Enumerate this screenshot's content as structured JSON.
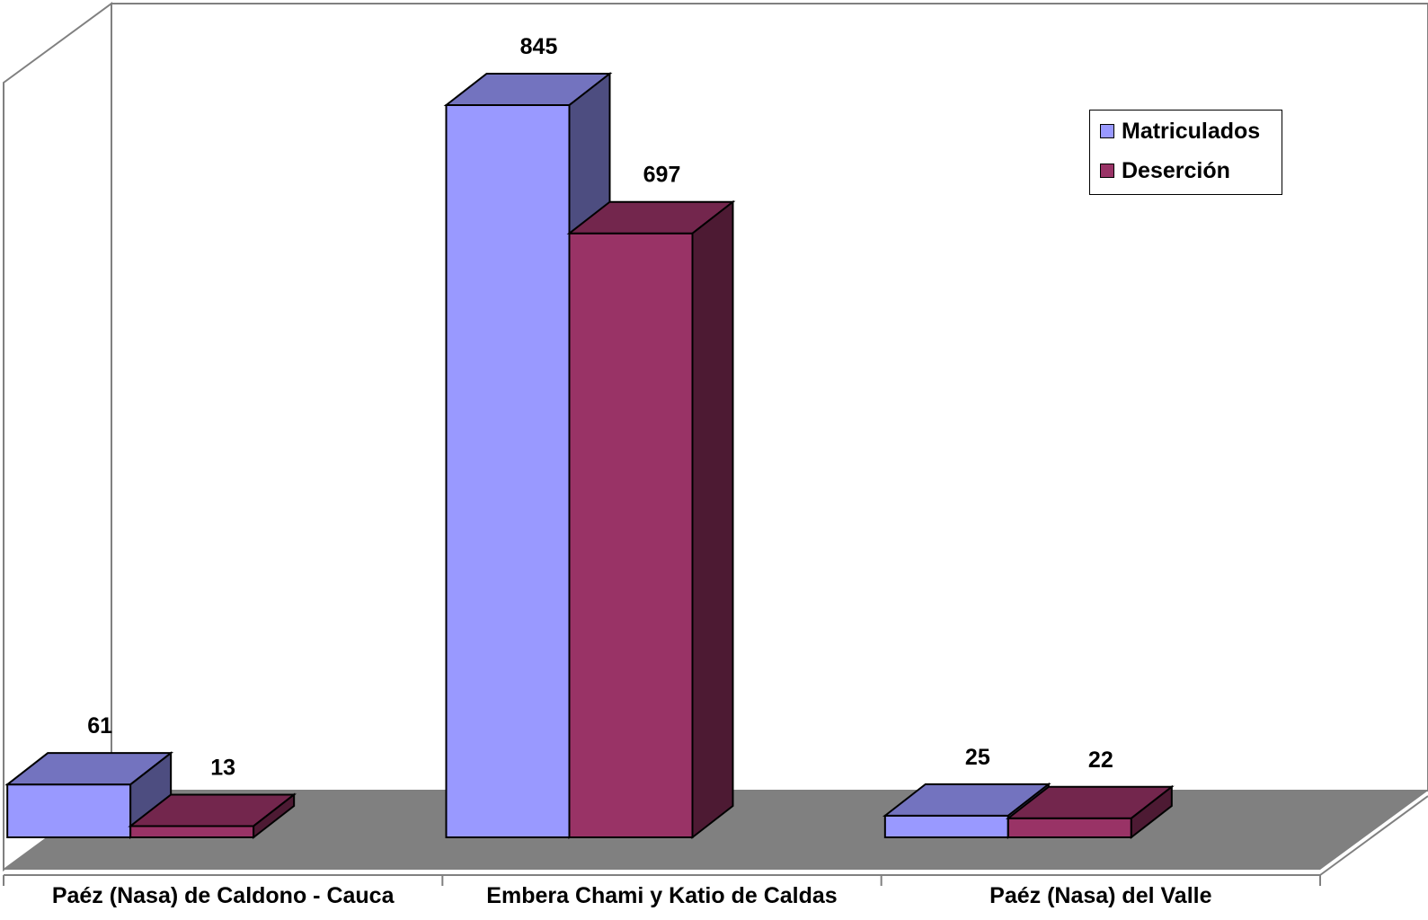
{
  "chart_data": {
    "type": "bar",
    "categories": [
      "Paéz (Nasa) de Caldono - Cauca",
      "Embera Chami y Katio de Caldas",
      "Paéz (Nasa) del Valle"
    ],
    "series": [
      {
        "name": "Matriculados",
        "values": [
          61,
          845,
          25
        ],
        "color": "#9999ff"
      },
      {
        "name": "Deserción",
        "values": [
          13,
          697,
          22
        ],
        "color": "#993366"
      }
    ],
    "ylim": [
      0,
      845
    ],
    "grid": false,
    "legend": "top-right",
    "three_d": true,
    "floor_color": "#808080"
  }
}
